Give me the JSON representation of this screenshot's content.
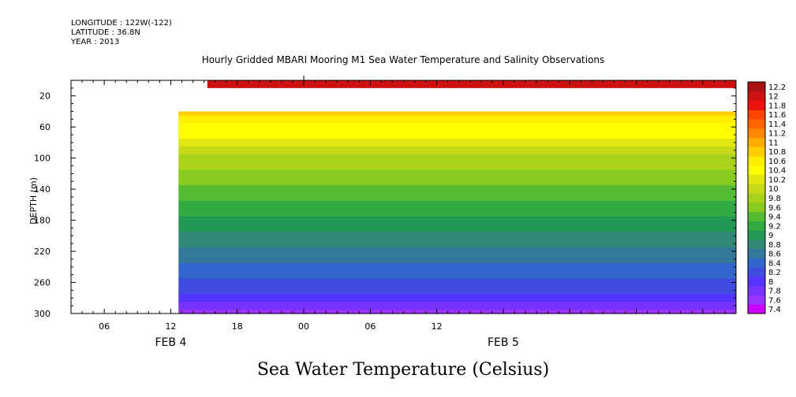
{
  "header": {
    "longitude": "LONGITUDE : 122W(-122)",
    "latitude": "LATITUDE : 36.8N",
    "year": "YEAR : 2013"
  },
  "chart_data": {
    "type": "heatmap",
    "title": "Hourly Gridded MBARI Mooring M1 Sea Water Temperature and Salinity Observations",
    "caption": "Sea Water Temperature (Celsius)",
    "ylabel": "DEPTH (m)",
    "xlabel": "",
    "y_reversed": true,
    "ylim": [
      300,
      0
    ],
    "y_ticks": [
      20,
      60,
      100,
      140,
      180,
      220,
      260,
      300
    ],
    "x_range_hours": [
      3,
      63
    ],
    "x_ticks": [
      {
        "hour": 6,
        "label": "06"
      },
      {
        "hour": 12,
        "label": "12"
      },
      {
        "hour": 18,
        "label": "18"
      },
      {
        "hour": 24,
        "label": "00"
      },
      {
        "hour": 30,
        "label": "06"
      },
      {
        "hour": 36,
        "label": "12"
      }
    ],
    "date_labels": [
      {
        "hour": 12,
        "label": "FEB  4"
      },
      {
        "hour": 42,
        "label": "FEB  5"
      }
    ],
    "colorbar": {
      "levels": [
        7.4,
        7.6,
        7.8,
        8,
        8.2,
        8.4,
        8.6,
        8.8,
        9,
        9.2,
        9.4,
        9.6,
        9.8,
        10,
        10.2,
        10.4,
        10.6,
        10.8,
        11,
        11.2,
        11.4,
        11.6,
        11.8,
        12,
        12.2
      ],
      "labels": [
        "7.4",
        "7.6",
        "7.8",
        "8",
        "8.2",
        "8.4",
        "8.6",
        "8.8",
        "9",
        "9.2",
        "9.4",
        "9.6",
        "9.8",
        "10",
        "10.2",
        "10.4",
        "10.6",
        "10.8",
        "11",
        "11.2",
        "11.4",
        "11.6",
        "11.8",
        "12",
        "12.2"
      ],
      "colors": [
        "#cc00ff",
        "#9933ff",
        "#7733ff",
        "#5533ff",
        "#3f4bdd",
        "#3366cc",
        "#337799",
        "#338877",
        "#229955",
        "#33aa44",
        "#55bb33",
        "#88cc22",
        "#aad11b",
        "#c8d91c",
        "#e0e60f",
        "#ffff00",
        "#ffee00",
        "#ffcc00",
        "#ffaa00",
        "#ff8800",
        "#ff6600",
        "#ff4400",
        "#ee1111",
        "#cc1111",
        "#aa1111"
      ]
    },
    "data_start_hour": 12.7,
    "surface_start_hour": 15.3,
    "surface_depth_range": [
      0,
      10
    ],
    "profile_depth_range": [
      40,
      300
    ],
    "surface_value": 12.1,
    "depth_profile": [
      {
        "depth": 40,
        "value": 10.9
      },
      {
        "depth": 45,
        "value": 10.6
      },
      {
        "depth": 55,
        "value": 10.5
      },
      {
        "depth": 65,
        "value": 10.4
      },
      {
        "depth": 75,
        "value": 10.2
      },
      {
        "depth": 85,
        "value": 10.0
      },
      {
        "depth": 95,
        "value": 9.9
      },
      {
        "depth": 105,
        "value": 9.8
      },
      {
        "depth": 115,
        "value": 9.7
      },
      {
        "depth": 125,
        "value": 9.6
      },
      {
        "depth": 135,
        "value": 9.5
      },
      {
        "depth": 145,
        "value": 9.4
      },
      {
        "depth": 155,
        "value": 9.3
      },
      {
        "depth": 165,
        "value": 9.2
      },
      {
        "depth": 175,
        "value": 9.1
      },
      {
        "depth": 185,
        "value": 9.0
      },
      {
        "depth": 195,
        "value": 8.9
      },
      {
        "depth": 205,
        "value": 8.8
      },
      {
        "depth": 215,
        "value": 8.7
      },
      {
        "depth": 225,
        "value": 8.6
      },
      {
        "depth": 235,
        "value": 8.5
      },
      {
        "depth": 245,
        "value": 8.4
      },
      {
        "depth": 255,
        "value": 8.3
      },
      {
        "depth": 265,
        "value": 8.2
      },
      {
        "depth": 275,
        "value": 8.0
      },
      {
        "depth": 285,
        "value": 7.9
      },
      {
        "depth": 295,
        "value": 7.7
      },
      {
        "depth": 300,
        "value": 7.6
      }
    ]
  }
}
